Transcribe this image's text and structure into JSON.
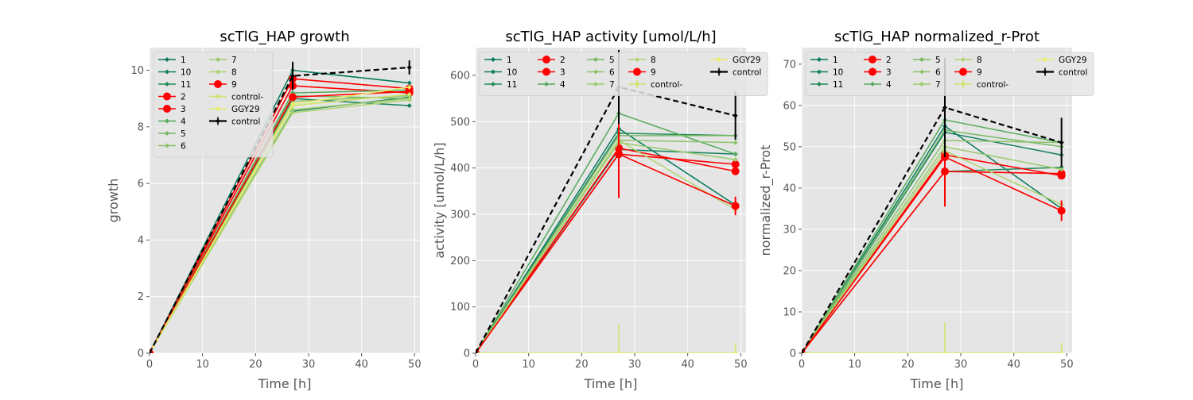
{
  "chart_data": [
    {
      "type": "line",
      "title": "scTlG_HAP growth",
      "xlabel": "Time [h]",
      "ylabel": "growth",
      "xlim": [
        0,
        51
      ],
      "ylim": [
        0,
        10.8
      ],
      "xticks": [
        0,
        10,
        20,
        30,
        40,
        50
      ],
      "yticks": [
        0,
        2,
        4,
        6,
        8,
        10
      ],
      "grid": true,
      "legend_position": "top-left",
      "legend_columns": 2,
      "x": [
        0,
        27,
        49
      ],
      "series": [
        {
          "name": "1",
          "color": "#077a5e",
          "marker": "diamond",
          "values": [
            0,
            10.0,
            9.55
          ]
        },
        {
          "name": "10",
          "color": "#137f60",
          "marker": "diamond",
          "values": [
            0,
            9.0,
            8.75
          ]
        },
        {
          "name": "11",
          "color": "#238b5c",
          "marker": "diamond",
          "values": [
            0,
            8.55,
            9.05
          ]
        },
        {
          "name": "2",
          "color": "#ff0000",
          "marker": "circle",
          "values": [
            0,
            9.7,
            9.35
          ]
        },
        {
          "name": "3",
          "color": "#ff0000",
          "marker": "circle",
          "values": [
            0,
            9.45,
            9.2
          ]
        },
        {
          "name": "4",
          "color": "#56aa5c",
          "marker": "diamond",
          "values": [
            0,
            9.2,
            9.3
          ]
        },
        {
          "name": "5",
          "color": "#78b865",
          "marker": "diamond",
          "values": [
            0,
            9.1,
            9.0
          ]
        },
        {
          "name": "6",
          "color": "#8cc36a",
          "marker": "diamond",
          "values": [
            0,
            8.9,
            9.1
          ]
        },
        {
          "name": "7",
          "color": "#9bcb6e",
          "marker": "diamond",
          "values": [
            0,
            8.6,
            9.0
          ]
        },
        {
          "name": "8",
          "color": "#aed46f",
          "marker": "diamond",
          "values": [
            0,
            8.5,
            8.95
          ]
        },
        {
          "name": "9",
          "color": "#ff0000",
          "marker": "circle",
          "values": [
            0,
            9.05,
            9.25
          ]
        },
        {
          "name": "control-",
          "color": "#cfe26a",
          "marker": "diamond",
          "values": [
            0,
            8.75,
            9.15
          ]
        },
        {
          "name": "GGY29",
          "color": "#e8ee66",
          "marker": "diamond",
          "values": [
            0,
            8.8,
            9.4
          ]
        },
        {
          "name": "control",
          "color": "#000000",
          "marker": "diamond",
          "dashed": true,
          "values": [
            0,
            9.8,
            10.1
          ],
          "err": [
            0,
            0.5,
            0.25
          ]
        }
      ]
    },
    {
      "type": "line",
      "title": "scTlG_HAP activity [umol/L/h]",
      "xlabel": "Time [h]",
      "ylabel": "activity [umol/L/h]",
      "xlim": [
        0,
        51
      ],
      "ylim": [
        0,
        660
      ],
      "xticks": [
        0,
        10,
        20,
        30,
        40,
        50
      ],
      "yticks": [
        0,
        100,
        200,
        300,
        400,
        500,
        600
      ],
      "grid": true,
      "legend_position": "top",
      "legend_columns": 5,
      "x": [
        0,
        27,
        49
      ],
      "series": [
        {
          "name": "1",
          "color": "#077a5e",
          "marker": "diamond",
          "values": [
            0,
            485,
            320
          ]
        },
        {
          "name": "10",
          "color": "#137f60",
          "marker": "diamond",
          "values": [
            0,
            440,
            430
          ]
        },
        {
          "name": "11",
          "color": "#238b5c",
          "marker": "diamond",
          "values": [
            0,
            475,
            470
          ]
        },
        {
          "name": "2",
          "color": "#ff0000",
          "marker": "circle",
          "values": [
            0,
            443,
            393
          ]
        },
        {
          "name": "3",
          "color": "#ff0000",
          "marker": "circle",
          "values": [
            0,
            430,
            408
          ]
        },
        {
          "name": "4",
          "color": "#56aa5c",
          "marker": "diamond",
          "values": [
            0,
            518,
            430
          ]
        },
        {
          "name": "5",
          "color": "#78b865",
          "marker": "diamond",
          "values": [
            0,
            470,
            470
          ]
        },
        {
          "name": "6",
          "color": "#8cc36a",
          "marker": "diamond",
          "values": [
            0,
            460,
            455
          ]
        },
        {
          "name": "7",
          "color": "#9bcb6e",
          "marker": "diamond",
          "values": [
            0,
            455,
            418
          ]
        },
        {
          "name": "8",
          "color": "#aed46f",
          "marker": "diamond",
          "values": [
            0,
            460,
            310
          ]
        },
        {
          "name": "9",
          "color": "#ff0000",
          "marker": "circle",
          "values": [
            0,
            430,
            318
          ],
          "err": [
            0,
            95,
            20
          ]
        },
        {
          "name": "control-",
          "color": "#cfe26a",
          "marker": "diamond",
          "values": [
            0,
            0,
            0
          ],
          "err": [
            0,
            62,
            22
          ]
        },
        {
          "name": "GGY29",
          "color": "#e8ee66",
          "marker": "diamond",
          "values": [
            0,
            0,
            0
          ]
        },
        {
          "name": "control",
          "color": "#000000",
          "marker": "diamond",
          "dashed": true,
          "values": [
            0,
            575,
            513
          ],
          "err": [
            0,
            80,
            52
          ]
        }
      ]
    },
    {
      "type": "line",
      "title": "scTlG_HAP normalized_r-Prot",
      "xlabel": "Time [h]",
      "ylabel": "normalized_r-Prot",
      "xlim": [
        0,
        51
      ],
      "ylim": [
        0,
        74
      ],
      "xticks": [
        0,
        10,
        20,
        30,
        40,
        50
      ],
      "yticks": [
        0,
        10,
        20,
        30,
        40,
        50,
        60,
        70
      ],
      "grid": true,
      "legend_position": "top",
      "legend_columns": 5,
      "x": [
        0,
        27,
        49
      ],
      "series": [
        {
          "name": "1",
          "color": "#077a5e",
          "marker": "diamond",
          "values": [
            0,
            55,
            35
          ]
        },
        {
          "name": "10",
          "color": "#137f60",
          "marker": "diamond",
          "values": [
            0,
            53.5,
            48
          ]
        },
        {
          "name": "11",
          "color": "#238b5c",
          "marker": "diamond",
          "values": [
            0,
            44,
            45
          ]
        },
        {
          "name": "2",
          "color": "#ff0000",
          "marker": "circle",
          "values": [
            0,
            48,
            43
          ]
        },
        {
          "name": "3",
          "color": "#ff0000",
          "marker": "circle",
          "values": [
            0,
            44,
            43.5
          ]
        },
        {
          "name": "4",
          "color": "#56aa5c",
          "marker": "diamond",
          "values": [
            0,
            56.5,
            51
          ]
        },
        {
          "name": "5",
          "color": "#78b865",
          "marker": "diamond",
          "values": [
            0,
            54,
            50
          ]
        },
        {
          "name": "6",
          "color": "#8cc36a",
          "marker": "diamond",
          "values": [
            0,
            51.5,
            51
          ]
        },
        {
          "name": "7",
          "color": "#9bcb6e",
          "marker": "diamond",
          "values": [
            0,
            50,
            44.5
          ]
        },
        {
          "name": "8",
          "color": "#aed46f",
          "marker": "diamond",
          "values": [
            0,
            49,
            36
          ]
        },
        {
          "name": "9",
          "color": "#ff0000",
          "marker": "circle",
          "values": [
            0,
            47.5,
            34.5
          ],
          "err": [
            0,
            12,
            2.5
          ]
        },
        {
          "name": "control-",
          "color": "#cfe26a",
          "marker": "diamond",
          "values": [
            0,
            0,
            0
          ],
          "err": [
            0,
            7.5,
            2.5
          ]
        },
        {
          "name": "GGY29",
          "color": "#e8ee66",
          "marker": "diamond",
          "values": [
            0,
            0,
            0
          ]
        },
        {
          "name": "control",
          "color": "#000000",
          "marker": "diamond",
          "dashed": true,
          "values": [
            0,
            59.5,
            51
          ],
          "err": [
            0,
            12,
            6
          ]
        }
      ]
    }
  ]
}
